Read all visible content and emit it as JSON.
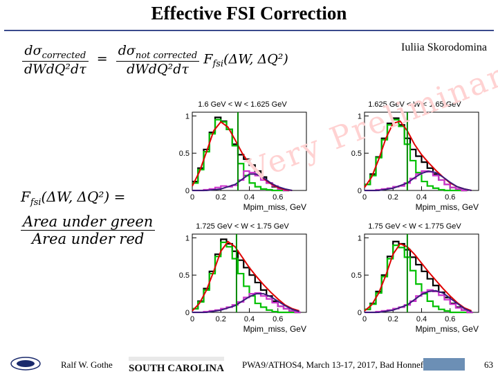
{
  "slide": {
    "title": "Effective FSI Correction",
    "author": "Iuliia Skorodomina",
    "watermark": "Very Preliminary",
    "formula1": {
      "lhs_num": "dσ",
      "lhs_num_sub": "corrected",
      "lhs_den": "dWdQ²dτ",
      "eq": "=",
      "rhs_num": "dσ",
      "rhs_num_sub": "not corrected",
      "rhs_den": "dWdQ²dτ",
      "factor": "F",
      "factor_sub": "fsi",
      "factor_args": "(ΔW, ΔQ²)"
    },
    "formula2": {
      "lhs": "F",
      "lhs_sub": "fsi",
      "lhs_args": "(ΔW, ΔQ²) =",
      "num": "Area under green",
      "den": "Area under red"
    }
  },
  "footer": {
    "left_name": "Ralf W. Gothe",
    "university": "SOUTH CAROLINA",
    "conference": "PWA9/ATHOS4, March 13-17, 2017, Bad Honnef",
    "page": "63"
  },
  "colors": {
    "black_hist": "#000000",
    "green_hist": "#00c000",
    "magenta_hist": "#cc33cc",
    "red_curve": "#e00000",
    "purple_curve": "#3a1a7a",
    "navy_hist": "#1a1a6e",
    "cut_line": "#008800"
  },
  "chart_data": [
    {
      "type": "line",
      "title": "1.6 GeV < W < 1.625 GeV",
      "xlabel": "Mpim_miss, GeV",
      "ylabel": "",
      "xlim": [
        0,
        0.8
      ],
      "ylim": [
        0,
        1.05
      ],
      "xticks": [
        "0",
        "0.2",
        "0.4",
        "0.6"
      ],
      "yticks": [
        "0",
        "0.5",
        "1"
      ],
      "cut": 0.32,
      "series": [
        {
          "role": "black_hist",
          "x": [
            0.02,
            0.06,
            0.1,
            0.14,
            0.18,
            0.22,
            0.26,
            0.3,
            0.34,
            0.38,
            0.42,
            0.46,
            0.5,
            0.54,
            0.58,
            0.62,
            0.66
          ],
          "y": [
            0.12,
            0.3,
            0.55,
            0.78,
            0.98,
            0.93,
            0.82,
            0.62,
            0.48,
            0.42,
            0.34,
            0.26,
            0.18,
            0.1,
            0.05,
            0.02,
            0.0
          ]
        },
        {
          "role": "green_hist",
          "x": [
            0.02,
            0.06,
            0.1,
            0.14,
            0.18,
            0.22,
            0.26,
            0.3,
            0.34,
            0.38,
            0.42,
            0.46,
            0.5,
            0.54,
            0.58,
            0.62,
            0.66
          ],
          "y": [
            0.1,
            0.28,
            0.52,
            0.76,
            0.95,
            0.92,
            0.82,
            0.6,
            0.36,
            0.2,
            0.1,
            0.05,
            0.02,
            0.01,
            0.0,
            0.0,
            0.0
          ]
        },
        {
          "role": "magenta_hist",
          "x": [
            0.02,
            0.06,
            0.1,
            0.14,
            0.18,
            0.22,
            0.26,
            0.3,
            0.34,
            0.38,
            0.42,
            0.46,
            0.5,
            0.54,
            0.58,
            0.62,
            0.66
          ],
          "y": [
            0.0,
            0.0,
            0.01,
            0.02,
            0.04,
            0.06,
            0.05,
            0.07,
            0.14,
            0.26,
            0.24,
            0.2,
            0.14,
            0.1,
            0.06,
            0.02,
            0.0
          ]
        },
        {
          "role": "red_curve",
          "x": [
            0.0,
            0.05,
            0.1,
            0.15,
            0.2,
            0.25,
            0.3,
            0.35,
            0.4,
            0.45,
            0.5,
            0.55,
            0.6,
            0.65,
            0.7
          ],
          "y": [
            0.06,
            0.25,
            0.52,
            0.8,
            0.92,
            0.85,
            0.68,
            0.5,
            0.36,
            0.25,
            0.16,
            0.09,
            0.04,
            0.01,
            0.0
          ]
        },
        {
          "role": "purple_curve",
          "x": [
            0.0,
            0.1,
            0.2,
            0.3,
            0.35,
            0.4,
            0.45,
            0.5,
            0.55,
            0.6,
            0.65,
            0.7
          ],
          "y": [
            0.0,
            0.0,
            0.02,
            0.08,
            0.15,
            0.22,
            0.22,
            0.17,
            0.1,
            0.05,
            0.02,
            0.0
          ]
        }
      ]
    },
    {
      "type": "line",
      "title": "1.625 GeV < W < 1.65 GeV",
      "xlabel": "Mpim_miss, GeV",
      "ylabel": "",
      "xlim": [
        0,
        0.8
      ],
      "ylim": [
        0,
        1.05
      ],
      "xticks": [
        "0",
        "0.2",
        "0.4",
        "0.6"
      ],
      "yticks": [
        "0",
        "0.5",
        "1"
      ],
      "cut": 0.3,
      "series": [
        {
          "role": "black_hist",
          "x": [
            0.02,
            0.06,
            0.1,
            0.14,
            0.18,
            0.22,
            0.26,
            0.3,
            0.34,
            0.38,
            0.42,
            0.46,
            0.5,
            0.54,
            0.58,
            0.62,
            0.66,
            0.7
          ],
          "y": [
            0.08,
            0.22,
            0.45,
            0.7,
            0.9,
            0.97,
            0.88,
            0.7,
            0.55,
            0.46,
            0.38,
            0.3,
            0.22,
            0.14,
            0.08,
            0.04,
            0.02,
            0.0
          ]
        },
        {
          "role": "green_hist",
          "x": [
            0.02,
            0.06,
            0.1,
            0.14,
            0.18,
            0.22,
            0.26,
            0.3,
            0.34,
            0.38,
            0.42,
            0.46,
            0.5,
            0.54,
            0.58,
            0.62,
            0.66,
            0.7
          ],
          "y": [
            0.08,
            0.2,
            0.44,
            0.68,
            0.88,
            0.95,
            0.86,
            0.62,
            0.4,
            0.24,
            0.12,
            0.06,
            0.03,
            0.01,
            0.0,
            0.0,
            0.0,
            0.0
          ]
        },
        {
          "role": "magenta_hist",
          "x": [
            0.02,
            0.06,
            0.1,
            0.14,
            0.18,
            0.22,
            0.26,
            0.3,
            0.34,
            0.38,
            0.42,
            0.46,
            0.5,
            0.54,
            0.58,
            0.62,
            0.66,
            0.7
          ],
          "y": [
            0.0,
            0.0,
            0.01,
            0.02,
            0.03,
            0.05,
            0.06,
            0.1,
            0.16,
            0.22,
            0.26,
            0.25,
            0.2,
            0.14,
            0.08,
            0.04,
            0.02,
            0.0
          ]
        },
        {
          "role": "red_curve",
          "x": [
            0.0,
            0.05,
            0.1,
            0.15,
            0.2,
            0.25,
            0.3,
            0.35,
            0.4,
            0.45,
            0.5,
            0.55,
            0.6,
            0.65,
            0.7,
            0.75
          ],
          "y": [
            0.04,
            0.18,
            0.42,
            0.7,
            0.9,
            0.93,
            0.8,
            0.62,
            0.48,
            0.37,
            0.27,
            0.18,
            0.1,
            0.05,
            0.02,
            0.0
          ]
        },
        {
          "role": "purple_curve",
          "x": [
            0.0,
            0.1,
            0.2,
            0.3,
            0.35,
            0.4,
            0.45,
            0.5,
            0.55,
            0.6,
            0.65,
            0.7,
            0.75
          ],
          "y": [
            0.0,
            0.0,
            0.03,
            0.1,
            0.17,
            0.23,
            0.26,
            0.24,
            0.18,
            0.11,
            0.05,
            0.02,
            0.0
          ]
        }
      ]
    },
    {
      "type": "line",
      "title": "1.725 GeV < W < 1.75 GeV",
      "xlabel": "Mpim_miss, GeV",
      "ylabel": "",
      "xlim": [
        0,
        0.8
      ],
      "ylim": [
        0,
        1.05
      ],
      "xticks": [
        "0",
        "0.2",
        "0.4",
        "0.6"
      ],
      "yticks": [
        "0",
        "0.5",
        "1"
      ],
      "cut": 0.31,
      "series": [
        {
          "role": "black_hist",
          "x": [
            0.02,
            0.06,
            0.1,
            0.14,
            0.18,
            0.22,
            0.26,
            0.3,
            0.34,
            0.38,
            0.42,
            0.46,
            0.5,
            0.54,
            0.58,
            0.62,
            0.66,
            0.7,
            0.74
          ],
          "y": [
            0.05,
            0.15,
            0.32,
            0.55,
            0.78,
            0.98,
            0.92,
            0.82,
            0.7,
            0.6,
            0.5,
            0.4,
            0.3,
            0.22,
            0.15,
            0.08,
            0.05,
            0.02,
            0.0
          ]
        },
        {
          "role": "green_hist",
          "x": [
            0.02,
            0.06,
            0.1,
            0.14,
            0.18,
            0.22,
            0.26,
            0.3,
            0.34,
            0.38,
            0.42,
            0.46,
            0.5,
            0.54,
            0.58,
            0.62,
            0.66,
            0.7,
            0.74
          ],
          "y": [
            0.05,
            0.14,
            0.3,
            0.52,
            0.75,
            0.94,
            0.88,
            0.72,
            0.52,
            0.35,
            0.22,
            0.12,
            0.07,
            0.03,
            0.01,
            0.0,
            0.0,
            0.0,
            0.0
          ]
        },
        {
          "role": "magenta_hist",
          "x": [
            0.02,
            0.06,
            0.1,
            0.14,
            0.18,
            0.22,
            0.26,
            0.3,
            0.34,
            0.38,
            0.42,
            0.46,
            0.5,
            0.54,
            0.58,
            0.62,
            0.66,
            0.7,
            0.74
          ],
          "y": [
            0.0,
            0.0,
            0.01,
            0.02,
            0.03,
            0.05,
            0.07,
            0.1,
            0.14,
            0.2,
            0.25,
            0.26,
            0.22,
            0.18,
            0.13,
            0.08,
            0.05,
            0.02,
            0.0
          ]
        },
        {
          "role": "red_curve",
          "x": [
            0.0,
            0.05,
            0.1,
            0.15,
            0.2,
            0.25,
            0.3,
            0.35,
            0.4,
            0.45,
            0.5,
            0.55,
            0.6,
            0.65,
            0.7,
            0.75
          ],
          "y": [
            0.02,
            0.12,
            0.3,
            0.55,
            0.82,
            0.95,
            0.88,
            0.74,
            0.6,
            0.48,
            0.37,
            0.27,
            0.18,
            0.1,
            0.05,
            0.02
          ]
        },
        {
          "role": "purple_curve",
          "x": [
            0.0,
            0.1,
            0.2,
            0.3,
            0.35,
            0.4,
            0.45,
            0.5,
            0.55,
            0.6,
            0.65,
            0.7,
            0.75
          ],
          "y": [
            0.0,
            0.0,
            0.03,
            0.09,
            0.15,
            0.21,
            0.25,
            0.25,
            0.21,
            0.15,
            0.09,
            0.04,
            0.01
          ]
        }
      ]
    },
    {
      "type": "line",
      "title": "1.75 GeV < W < 1.775 GeV",
      "xlabel": "Mpim_miss, GeV",
      "ylabel": "",
      "xlim": [
        0,
        0.8
      ],
      "ylim": [
        0,
        1.05
      ],
      "xticks": [
        "0",
        "0.2",
        "0.4",
        "0.6"
      ],
      "yticks": [
        "0",
        "0.5",
        "1"
      ],
      "cut": 0.3,
      "series": [
        {
          "role": "black_hist",
          "x": [
            0.02,
            0.06,
            0.1,
            0.14,
            0.18,
            0.22,
            0.26,
            0.3,
            0.34,
            0.38,
            0.42,
            0.46,
            0.5,
            0.54,
            0.58,
            0.62,
            0.66,
            0.7,
            0.74
          ],
          "y": [
            0.04,
            0.12,
            0.28,
            0.5,
            0.75,
            0.95,
            0.92,
            0.84,
            0.74,
            0.64,
            0.55,
            0.45,
            0.36,
            0.27,
            0.2,
            0.12,
            0.07,
            0.03,
            0.0
          ]
        },
        {
          "role": "green_hist",
          "x": [
            0.02,
            0.06,
            0.1,
            0.14,
            0.18,
            0.22,
            0.26,
            0.3,
            0.34,
            0.38,
            0.42,
            0.46,
            0.5,
            0.54,
            0.58,
            0.62,
            0.66,
            0.7,
            0.74
          ],
          "y": [
            0.04,
            0.11,
            0.26,
            0.48,
            0.72,
            0.9,
            0.87,
            0.74,
            0.56,
            0.38,
            0.25,
            0.15,
            0.08,
            0.04,
            0.02,
            0.0,
            0.0,
            0.0,
            0.0
          ]
        },
        {
          "role": "magenta_hist",
          "x": [
            0.02,
            0.06,
            0.1,
            0.14,
            0.18,
            0.22,
            0.26,
            0.3,
            0.34,
            0.38,
            0.42,
            0.46,
            0.5,
            0.54,
            0.58,
            0.62,
            0.66,
            0.7,
            0.74
          ],
          "y": [
            0.0,
            0.0,
            0.01,
            0.02,
            0.03,
            0.05,
            0.07,
            0.1,
            0.15,
            0.22,
            0.27,
            0.3,
            0.28,
            0.23,
            0.17,
            0.11,
            0.06,
            0.03,
            0.0
          ]
        },
        {
          "role": "red_curve",
          "x": [
            0.0,
            0.05,
            0.1,
            0.15,
            0.2,
            0.25,
            0.3,
            0.35,
            0.4,
            0.45,
            0.5,
            0.55,
            0.6,
            0.65,
            0.7,
            0.75
          ],
          "y": [
            0.02,
            0.1,
            0.26,
            0.5,
            0.78,
            0.92,
            0.88,
            0.78,
            0.66,
            0.54,
            0.43,
            0.32,
            0.22,
            0.13,
            0.06,
            0.02
          ]
        },
        {
          "role": "purple_curve",
          "x": [
            0.0,
            0.1,
            0.2,
            0.3,
            0.35,
            0.4,
            0.45,
            0.5,
            0.55,
            0.6,
            0.65,
            0.7,
            0.75
          ],
          "y": [
            0.0,
            0.0,
            0.03,
            0.1,
            0.17,
            0.24,
            0.28,
            0.29,
            0.26,
            0.19,
            0.12,
            0.05,
            0.01
          ]
        }
      ]
    }
  ]
}
